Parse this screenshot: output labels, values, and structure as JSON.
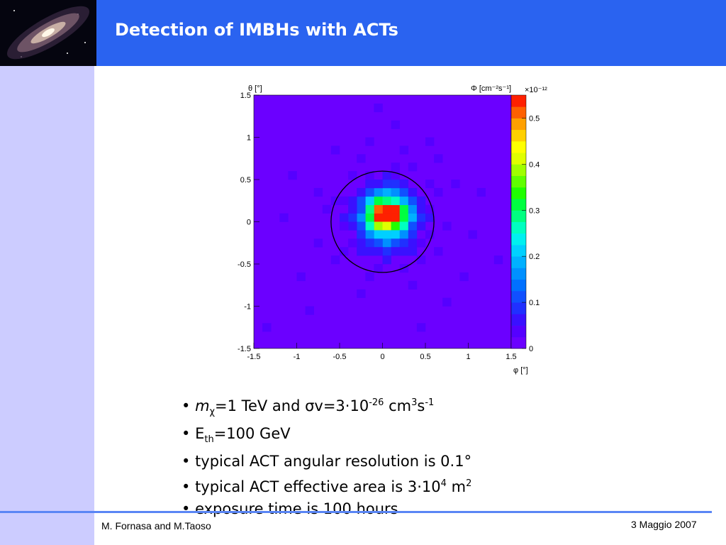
{
  "header": {
    "title": "Detection of IMBHs with ACTs"
  },
  "footer": {
    "authors": "M. Fornasa and M.Taoso",
    "date": "3 Maggio 2007"
  },
  "chart_data": {
    "type": "heatmap",
    "title": "",
    "xlabel": "φ [°]",
    "ylabel": "θ [°]",
    "zlabel": "Φ [cm⁻²s⁻¹]",
    "z_exponent": "×10⁻¹²",
    "xlim": [
      -1.5,
      1.5
    ],
    "ylim": [
      -1.5,
      1.5
    ],
    "zlim": [
      0,
      0.55
    ],
    "x_ticks": [
      "-1.5",
      "-1",
      "-0.5",
      "0",
      "0.5",
      "1",
      "1.5"
    ],
    "y_ticks": [
      "-1.5",
      "-1",
      "-0.5",
      "0",
      "0.5",
      "1",
      "1.5"
    ],
    "z_ticks": [
      "0",
      "0.1",
      "0.2",
      "0.3",
      "0.4",
      "0.5"
    ],
    "grid_size": 30,
    "circle": {
      "center": [
        0,
        0
      ],
      "radius": 0.6
    },
    "cells": [
      [
        0,
        0,
        0.55
      ],
      [
        1,
        0,
        0.55
      ],
      [
        0,
        1,
        0.55
      ],
      [
        1,
        1,
        0.55
      ],
      [
        -1,
        0,
        0.55
      ],
      [
        -1,
        1,
        0.5
      ],
      [
        -1,
        -1,
        0.38
      ],
      [
        0,
        -1,
        0.4
      ],
      [
        1,
        -1,
        0.35
      ],
      [
        2,
        0,
        0.3
      ],
      [
        2,
        1,
        0.3
      ],
      [
        -2,
        0,
        0.3
      ],
      [
        -1,
        2,
        0.3
      ],
      [
        0,
        2,
        0.28
      ],
      [
        1,
        2,
        0.25
      ],
      [
        -2,
        1,
        0.28
      ],
      [
        -2,
        -1,
        0.25
      ],
      [
        2,
        -1,
        0.25
      ],
      [
        0,
        -2,
        0.22
      ],
      [
        1,
        -2,
        0.2
      ],
      [
        -1,
        -2,
        0.2
      ],
      [
        2,
        2,
        0.18
      ],
      [
        -2,
        2,
        0.2
      ],
      [
        -2,
        -2,
        0.15
      ],
      [
        2,
        -2,
        0.15
      ],
      [
        3,
        0,
        0.18
      ],
      [
        3,
        1,
        0.15
      ],
      [
        -3,
        0,
        0.15
      ],
      [
        -3,
        1,
        0.12
      ],
      [
        0,
        3,
        0.18
      ],
      [
        1,
        3,
        0.15
      ],
      [
        -1,
        3,
        0.15
      ],
      [
        0,
        -3,
        0.15
      ],
      [
        1,
        -3,
        0.12
      ],
      [
        -1,
        -3,
        0.12
      ],
      [
        3,
        -1,
        0.12
      ],
      [
        -3,
        -1,
        0.1
      ],
      [
        3,
        2,
        0.1
      ],
      [
        -3,
        2,
        0.1
      ],
      [
        2,
        3,
        0.1
      ],
      [
        -2,
        3,
        0.1
      ],
      [
        2,
        -3,
        0.09
      ],
      [
        -2,
        -3,
        0.09
      ],
      [
        3,
        -2,
        0.09
      ],
      [
        -3,
        -2,
        0.09
      ],
      [
        4,
        0,
        0.09
      ],
      [
        -4,
        0,
        0.08
      ],
      [
        0,
        4,
        0.09
      ],
      [
        0,
        -4,
        0.08
      ],
      [
        4,
        1,
        0.07
      ],
      [
        -4,
        1,
        0.07
      ],
      [
        1,
        4,
        0.08
      ],
      [
        -1,
        4,
        0.07
      ],
      [
        1,
        -4,
        0.07
      ],
      [
        -1,
        -4,
        0.07
      ],
      [
        3,
        3,
        0.07
      ],
      [
        -3,
        3,
        0.07
      ],
      [
        3,
        -3,
        0.07
      ],
      [
        -3,
        -3,
        0.06
      ],
      [
        4,
        -1,
        0.06
      ],
      [
        -4,
        -1,
        0.06
      ],
      [
        4,
        2,
        0.06
      ],
      [
        -4,
        2,
        0.06
      ],
      [
        2,
        4,
        0.06
      ],
      [
        -2,
        4,
        0.06
      ],
      [
        2,
        -4,
        0.06
      ],
      [
        -2,
        -4,
        0.06
      ],
      [
        5,
        0,
        0.05
      ],
      [
        -5,
        0,
        0.05
      ],
      [
        0,
        5,
        0.05
      ],
      [
        0,
        -5,
        0.05
      ],
      [
        5,
        1,
        0.04
      ],
      [
        -5,
        2,
        0.04
      ],
      [
        1,
        5,
        0.04
      ],
      [
        -2,
        5,
        0.04
      ],
      [
        3,
        -4,
        0.05
      ],
      [
        -3,
        -4,
        0.05
      ],
      [
        4,
        -3,
        0.04
      ],
      [
        -4,
        -3,
        0.04
      ],
      [
        5,
        -2,
        0.04
      ],
      [
        -5,
        -1,
        0.04
      ],
      [
        6,
        3,
        0.04
      ],
      [
        -6,
        2,
        0.04
      ],
      [
        1,
        6,
        0.04
      ],
      [
        -1,
        -6,
        0.04
      ],
      [
        3,
        6,
        0.04
      ],
      [
        -3,
        7,
        0.04
      ],
      [
        2,
        -6,
        0.04
      ],
      [
        -2,
        -7,
        0.04
      ],
      [
        7,
        -1,
        0.04
      ],
      [
        -7,
        1,
        0.04
      ],
      [
        5,
        4,
        0.04
      ],
      [
        -4,
        5,
        0.04
      ],
      [
        4,
        -5,
        0.04
      ],
      [
        -5,
        -4,
        0.04
      ],
      [
        8,
        4,
        0.04
      ],
      [
        -8,
        3,
        0.04
      ],
      [
        6,
        -4,
        0.04
      ],
      [
        -6,
        -5,
        0.04
      ],
      [
        2,
        8,
        0.04
      ],
      [
        -2,
        9,
        0.04
      ],
      [
        1,
        11,
        0.04
      ],
      [
        -3,
        -9,
        0.04
      ],
      [
        3,
        -8,
        0.04
      ],
      [
        5,
        9,
        0.04
      ],
      [
        -11,
        5,
        0.04
      ],
      [
        10,
        -2,
        0.04
      ],
      [
        -10,
        -7,
        0.04
      ],
      [
        11,
        3,
        0.04
      ],
      [
        -9,
        -11,
        0.04
      ],
      [
        4,
        -13,
        0.04
      ],
      [
        -14,
        -13,
        0.04
      ],
      [
        -1,
        13,
        0.04
      ],
      [
        9,
        -7,
        0.04
      ],
      [
        -12,
        0,
        0.04
      ],
      [
        13,
        -5,
        0.04
      ],
      [
        -6,
        8,
        0.04
      ],
      [
        6,
        7,
        0.04
      ],
      [
        7,
        -10,
        0.04
      ],
      [
        -8,
        -3,
        0.04
      ]
    ]
  },
  "bullets": [
    {
      "pre_italic": "m",
      "sub": "χ",
      "text": "=1 TeV and σv=3·10",
      "sup1": "-26",
      "mid": " cm",
      "sup2": "3",
      "mid2": "s",
      "sup3": "-1"
    },
    {
      "lead": "E",
      "sub": "th",
      "text": "=100 GeV"
    },
    {
      "text": "typical ACT angular resolution is 0.1°"
    },
    {
      "text": "typical ACT effective area is 3·10",
      "sup1": "4",
      "mid": " m",
      "sup2": "2"
    },
    {
      "text": "exposure time is 100 hours"
    }
  ]
}
